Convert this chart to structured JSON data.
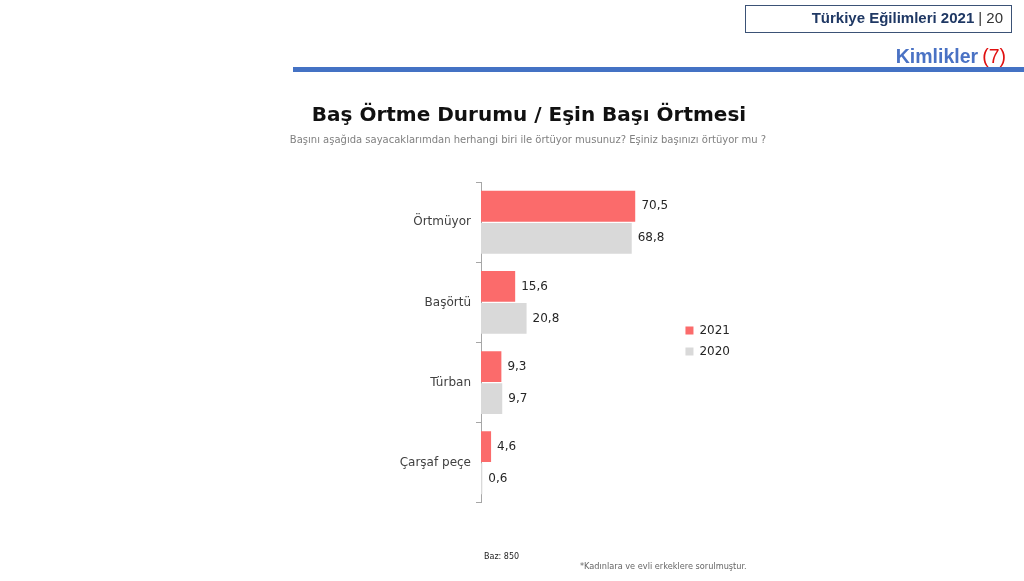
{
  "chart_data": {
    "type": "bar",
    "orientation": "horizontal",
    "title": "Baş Örtme Durumu / Eşin Başı Örtmesi",
    "subtitle": "Başını aşağıda sayacaklarımdan herhangi biri ile örtüyor musunuz? Eşiniz başınızı örtüyor mu ?",
    "categories": [
      "Örtmüyor",
      "Başörtü",
      "Türban",
      "Çarşaf peçe"
    ],
    "series": [
      {
        "name": "2021",
        "color": "#fb6b6b",
        "values": [
          70.5,
          15.6,
          9.3,
          4.6
        ],
        "value_labels": [
          "70,5",
          "15,6",
          "9,3",
          "4,6"
        ]
      },
      {
        "name": "2020",
        "color": "#d9d9d9",
        "values": [
          68.8,
          20.8,
          9.7,
          0.6
        ],
        "value_labels": [
          "68,8",
          "20,8",
          "9,7",
          "0,6"
        ]
      }
    ],
    "tick_labels": "y",
    "legend": "right",
    "annotations": [
      "Türkiye Eğilimleri 2021",
      "| 20",
      "Kimlikler",
      "(7)",
      "Baz: 850",
      "*Kadınlara ve evli erkeklere sorulmuştur."
    ]
  }
}
